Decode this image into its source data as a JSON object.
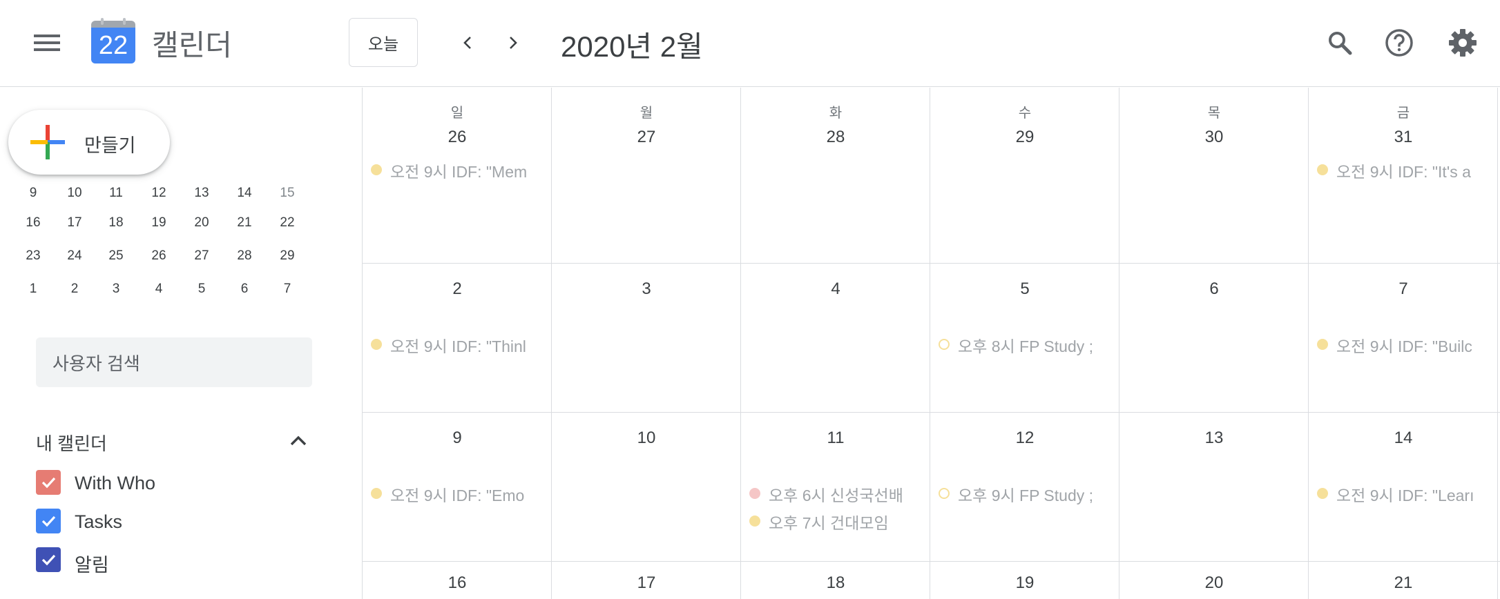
{
  "header": {
    "app_title": "캘린더",
    "logo_day": "22",
    "today_label": "오늘",
    "month_title": "2020년 2월"
  },
  "sidebar": {
    "create_label": "만들기",
    "mini_calendar_rows": [
      [
        "9",
        "10",
        "11",
        "12",
        "13",
        "14",
        "15"
      ],
      [
        "16",
        "17",
        "18",
        "19",
        "20",
        "21",
        "22"
      ],
      [
        "23",
        "24",
        "25",
        "26",
        "27",
        "28",
        "29"
      ],
      [
        "1",
        "2",
        "3",
        "4",
        "5",
        "6",
        "7"
      ]
    ],
    "search_placeholder": "사용자 검색",
    "my_calendars_title": "내 캘린더",
    "calendars": [
      {
        "name": "With Who",
        "color": "#e67c73"
      },
      {
        "name": "Tasks",
        "color": "#4285f4"
      },
      {
        "name": "알림",
        "color": "#3f51b5"
      }
    ]
  },
  "grid": {
    "weekdays": [
      "일",
      "월",
      "화",
      "수",
      "목",
      "금"
    ],
    "weeks": [
      [
        {
          "date": "26",
          "events": [
            {
              "text": "오전 9시 IDF: \"Mem",
              "color": "#f6e09a"
            }
          ]
        },
        {
          "date": "27",
          "events": []
        },
        {
          "date": "28",
          "events": []
        },
        {
          "date": "29",
          "events": []
        },
        {
          "date": "30",
          "events": []
        },
        {
          "date": "31",
          "events": [
            {
              "text": "오전 9시 IDF: \"It's a",
              "color": "#f6e09a"
            }
          ]
        }
      ],
      [
        {
          "date": "2",
          "events": [
            {
              "text": "오전 9시 IDF: \"Thinl",
              "color": "#f6e09a"
            }
          ]
        },
        {
          "date": "3",
          "events": []
        },
        {
          "date": "4",
          "events": []
        },
        {
          "date": "5",
          "events": [
            {
              "text": "오후 8시 FP Study ;",
              "color": "#f6e09a",
              "hollow": true
            }
          ]
        },
        {
          "date": "6",
          "events": []
        },
        {
          "date": "7",
          "events": [
            {
              "text": "오전 9시 IDF: \"Builc",
              "color": "#f6e09a"
            }
          ]
        }
      ],
      [
        {
          "date": "9",
          "events": [
            {
              "text": "오전 9시 IDF: \"Emo",
              "color": "#f6e09a"
            }
          ]
        },
        {
          "date": "10",
          "events": []
        },
        {
          "date": "11",
          "events": [
            {
              "text": "오후 6시 신성국선배",
              "color": "#f5c6c6"
            },
            {
              "text": "오후 7시 건대모임",
              "color": "#f6e09a"
            }
          ]
        },
        {
          "date": "12",
          "events": [
            {
              "text": "오후 9시 FP Study ;",
              "color": "#f6e09a",
              "hollow": true
            }
          ]
        },
        {
          "date": "13",
          "events": []
        },
        {
          "date": "14",
          "events": [
            {
              "text": "오전 9시 IDF: \"Learı",
              "color": "#f6e09a"
            }
          ]
        }
      ],
      [
        {
          "date": "16",
          "events": []
        },
        {
          "date": "17",
          "events": []
        },
        {
          "date": "18",
          "events": []
        },
        {
          "date": "19",
          "events": []
        },
        {
          "date": "20",
          "events": []
        },
        {
          "date": "21",
          "events": []
        }
      ]
    ]
  },
  "icons": {
    "menu": "hamburger-icon",
    "prev": "chevron-left-icon",
    "next": "chevron-right-icon",
    "search": "search-icon",
    "help": "help-icon",
    "settings": "gear-icon"
  }
}
